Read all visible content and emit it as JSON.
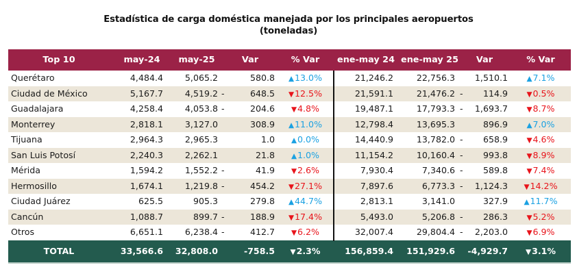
{
  "title": {
    "line1": "Estadística de carga doméstica manejada por los principales aeropuertos",
    "line2": "(toneladas)"
  },
  "colors": {
    "header_bg": "#9b2247",
    "total_bg": "#235b4e",
    "stripe_bg": "#ece6d9",
    "increase": "#1ba1e2",
    "decrease": "#e8141b"
  },
  "icons": {
    "up": "▲",
    "down": "▼"
  },
  "table": {
    "headers": [
      "Top 10",
      "may-24",
      "may-25",
      "Var",
      "% Var",
      "ene-may 24",
      "ene-may 25",
      "Var",
      "% Var"
    ],
    "rows": [
      {
        "name": "Querétaro",
        "may24": "4,484.4",
        "may25": "5,065.2",
        "var_sign": "",
        "var": "580.8",
        "pvar_dir": "up",
        "pvar": "13.0%",
        "ene24": "21,246.2",
        "ene25": "22,756.3",
        "var2_sign": "",
        "var2": "1,510.1",
        "pvar2_dir": "up",
        "pvar2": "7.1%"
      },
      {
        "name": "Ciudad de México",
        "may24": "5,167.7",
        "may25": "4,519.2",
        "var_sign": "-",
        "var": "648.5",
        "pvar_dir": "down",
        "pvar": "12.5%",
        "ene24": "21,591.1",
        "ene25": "21,476.2",
        "var2_sign": "-",
        "var2": "114.9",
        "pvar2_dir": "down",
        "pvar2": "0.5%"
      },
      {
        "name": "Guadalajara",
        "may24": "4,258.4",
        "may25": "4,053.8",
        "var_sign": "-",
        "var": "204.6",
        "pvar_dir": "down",
        "pvar": "4.8%",
        "ene24": "19,487.1",
        "ene25": "17,793.3",
        "var2_sign": "-",
        "var2": "1,693.7",
        "pvar2_dir": "down",
        "pvar2": "8.7%"
      },
      {
        "name": "Monterrey",
        "may24": "2,818.1",
        "may25": "3,127.0",
        "var_sign": "",
        "var": "308.9",
        "pvar_dir": "up",
        "pvar": "11.0%",
        "ene24": "12,798.4",
        "ene25": "13,695.3",
        "var2_sign": "",
        "var2": "896.9",
        "pvar2_dir": "up",
        "pvar2": "7.0%"
      },
      {
        "name": "Tijuana",
        "may24": "2,964.3",
        "may25": "2,965.3",
        "var_sign": "",
        "var": "1.0",
        "pvar_dir": "up",
        "pvar": "0.0%",
        "ene24": "14,440.9",
        "ene25": "13,782.0",
        "var2_sign": "-",
        "var2": "658.9",
        "pvar2_dir": "down",
        "pvar2": "4.6%"
      },
      {
        "name": "San Luis Potosí",
        "may24": "2,240.3",
        "may25": "2,262.1",
        "var_sign": "",
        "var": "21.8",
        "pvar_dir": "up",
        "pvar": "1.0%",
        "ene24": "11,154.2",
        "ene25": "10,160.4",
        "var2_sign": "-",
        "var2": "993.8",
        "pvar2_dir": "down",
        "pvar2": "8.9%"
      },
      {
        "name": "Mérida",
        "may24": "1,594.2",
        "may25": "1,552.2",
        "var_sign": "-",
        "var": "41.9",
        "pvar_dir": "down",
        "pvar": "2.6%",
        "ene24": "7,930.4",
        "ene25": "7,340.6",
        "var2_sign": "-",
        "var2": "589.8",
        "pvar2_dir": "down",
        "pvar2": "7.4%"
      },
      {
        "name": "Hermosillo",
        "may24": "1,674.1",
        "may25": "1,219.8",
        "var_sign": "-",
        "var": "454.2",
        "pvar_dir": "down",
        "pvar": "27.1%",
        "ene24": "7,897.6",
        "ene25": "6,773.3",
        "var2_sign": "-",
        "var2": "1,124.3",
        "pvar2_dir": "down",
        "pvar2": "14.2%"
      },
      {
        "name": "Ciudad Juárez",
        "may24": "625.5",
        "may25": "905.3",
        "var_sign": "",
        "var": "279.8",
        "pvar_dir": "up",
        "pvar": "44.7%",
        "ene24": "2,813.1",
        "ene25": "3,141.0",
        "var2_sign": "",
        "var2": "327.9",
        "pvar2_dir": "up",
        "pvar2": "11.7%"
      },
      {
        "name": "Cancún",
        "may24": "1,088.7",
        "may25": "899.7",
        "var_sign": "-",
        "var": "188.9",
        "pvar_dir": "down",
        "pvar": "17.4%",
        "ene24": "5,493.0",
        "ene25": "5,206.8",
        "var2_sign": "-",
        "var2": "286.3",
        "pvar2_dir": "down",
        "pvar2": "5.2%"
      },
      {
        "name": "Otros",
        "may24": "6,651.1",
        "may25": "6,238.4",
        "var_sign": "-",
        "var": "412.7",
        "pvar_dir": "down",
        "pvar": "6.2%",
        "ene24": "32,007.4",
        "ene25": "29,804.4",
        "var2_sign": "-",
        "var2": "2,203.0",
        "pvar2_dir": "down",
        "pvar2": "6.9%"
      }
    ],
    "total": {
      "name": "TOTAL",
      "may24": "33,566.6",
      "may25": "32,808.0",
      "var": "-758.5",
      "pvar_dir": "down",
      "pvar": "2.3%",
      "ene24": "156,859.4",
      "ene25": "151,929.6",
      "var2": "-4,929.7",
      "pvar2_dir": "down",
      "pvar2": "3.1%"
    }
  }
}
